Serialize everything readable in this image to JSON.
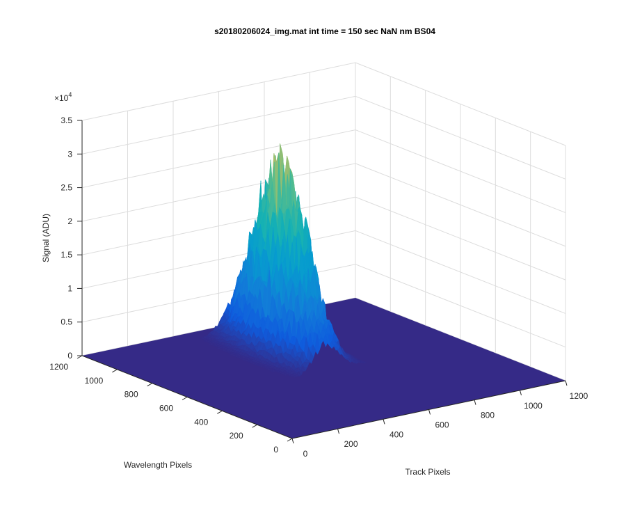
{
  "chart_data": {
    "type": "surface",
    "title": "s20180206024_img.mat int time = 150 sec  NaN nm BS04",
    "xlabel": "Track Pixels",
    "ylabel": "Wavelength Pixels",
    "zlabel": "Signal (ADU)",
    "z_exponent_label": "×10",
    "z_exponent_power": "4",
    "xlim": [
      0,
      1200
    ],
    "ylim": [
      0,
      1200
    ],
    "zlim": [
      0,
      35000
    ],
    "x_ticks": [
      "0",
      "200",
      "400",
      "600",
      "800",
      "1000",
      "1200"
    ],
    "y_ticks": [
      "0",
      "200",
      "400",
      "600",
      "800",
      "1000",
      "1200"
    ],
    "z_ticks": [
      "0",
      "0.5",
      "1",
      "1.5",
      "2",
      "2.5",
      "3",
      "3.5"
    ],
    "grid": true,
    "colormap": "parula",
    "floor_value": 0,
    "peaks": [
      {
        "track_center": 620,
        "wavelength_center": 870,
        "track_width": 55,
        "wavelength_width": 140,
        "peak_signal": 25500
      },
      {
        "track_center": 560,
        "wavelength_center": 760,
        "track_width": 45,
        "wavelength_width": 140,
        "peak_signal": 9500
      },
      {
        "track_center": 250,
        "wavelength_center": 1080,
        "track_width": 15,
        "wavelength_width": 20,
        "peak_signal": 1200
      }
    ],
    "colors": {
      "low": "#352a87",
      "mid_low": "#0f5cdd",
      "mid": "#1aa9c3",
      "mid_high": "#5ec962",
      "high": "#f9c932",
      "top": "#f9fb0e"
    }
  }
}
